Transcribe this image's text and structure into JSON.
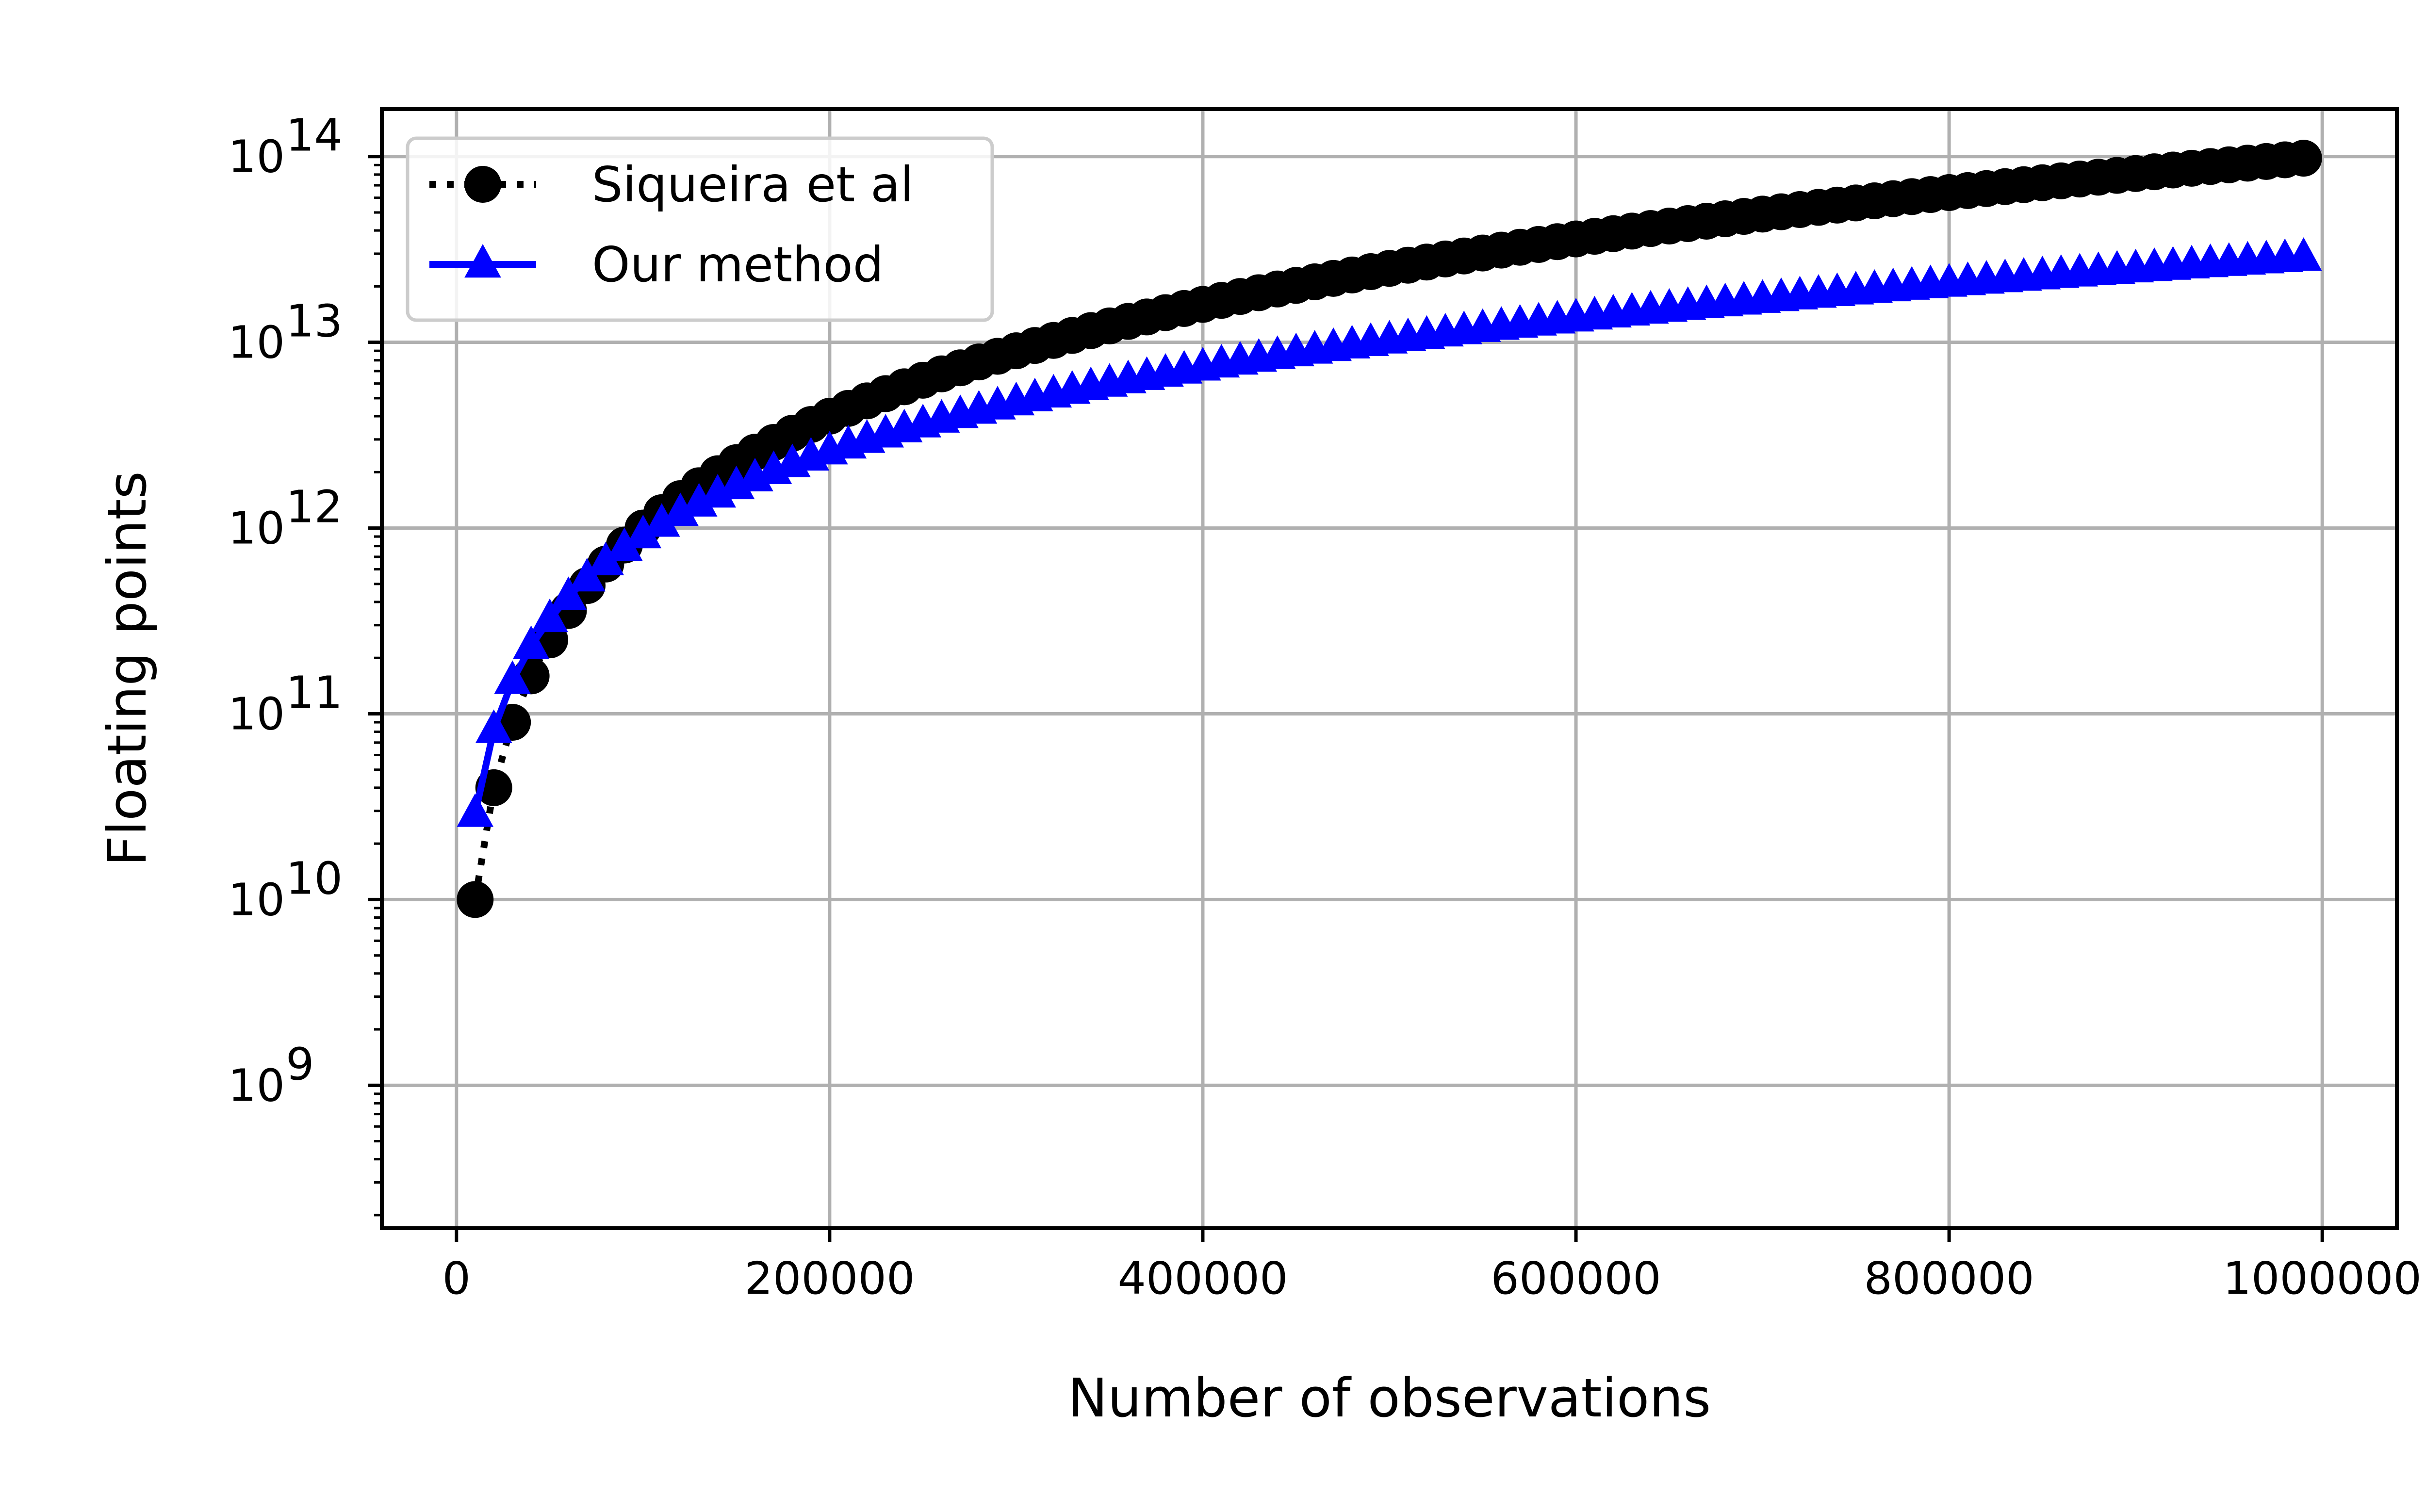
{
  "chart_data": {
    "type": "line",
    "xlabel": "Number of observations",
    "ylabel": "Floating points",
    "xlim": [
      -40000,
      1040000
    ],
    "ylim": [
      170000000,
      180000000000000
    ],
    "yscale": "log",
    "x_ticks": [
      {
        "value": 0,
        "label": "0"
      },
      {
        "value": 200000,
        "label": "200000"
      },
      {
        "value": 400000,
        "label": "400000"
      },
      {
        "value": 600000,
        "label": "600000"
      },
      {
        "value": 800000,
        "label": "800000"
      },
      {
        "value": 1000000,
        "label": "1000000"
      }
    ],
    "y_ticks": [
      {
        "value": 1000000000,
        "base": "10",
        "exp": "9"
      },
      {
        "value": 10000000000,
        "base": "10",
        "exp": "10"
      },
      {
        "value": 100000000000,
        "base": "10",
        "exp": "11"
      },
      {
        "value": 1000000000000,
        "base": "10",
        "exp": "12"
      },
      {
        "value": 10000000000000,
        "base": "10",
        "exp": "13"
      },
      {
        "value": 100000000000000,
        "base": "10",
        "exp": "14"
      }
    ],
    "grid": true,
    "legend_position": "top-left",
    "x_range": {
      "start": 10000,
      "end": 990000,
      "step": 10000
    },
    "series": [
      {
        "name": "Siqueira et al",
        "color": "#000000",
        "marker": "circle",
        "linestyle": "dotted",
        "model": "power",
        "coef": 100,
        "exponent": 2
      },
      {
        "name": "Our method",
        "color": "#0000ff",
        "marker": "triangle",
        "linestyle": "solid",
        "model": "power",
        "coef": 29000,
        "exponent": 1.5
      }
    ]
  }
}
